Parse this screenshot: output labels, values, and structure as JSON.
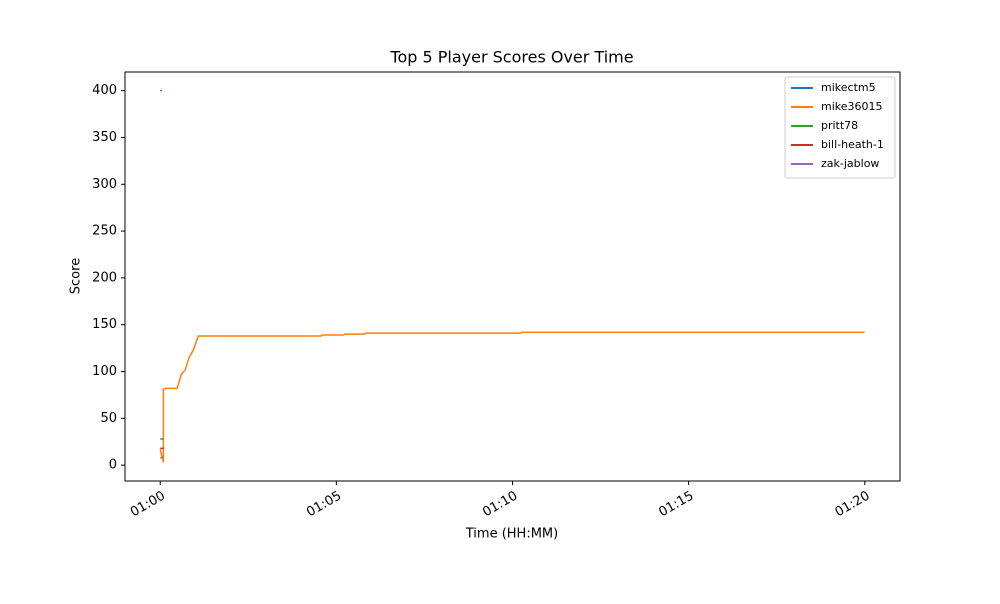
{
  "chart_data": {
    "type": "line",
    "title": "Top 5 Player Scores Over Time",
    "x_label": "Time (HH:MM)",
    "y_label": "Score",
    "xlim": [
      -1,
      21
    ],
    "ylim": [
      -16.9,
      419.9
    ],
    "xticks": [
      {
        "value": 0,
        "label": "01:00"
      },
      {
        "value": 5,
        "label": "01:05"
      },
      {
        "value": 10,
        "label": "01:10"
      },
      {
        "value": 15,
        "label": "01:15"
      },
      {
        "value": 20,
        "label": "01:20"
      }
    ],
    "yticks": [
      0,
      50,
      100,
      150,
      200,
      250,
      300,
      350,
      400
    ],
    "grid": false,
    "legend": "upper-right",
    "series": [
      {
        "name": "mikectm5",
        "color": "#1f77b4",
        "x": [
          0,
          0.05
        ],
        "values": [
          400,
          400
        ]
      },
      {
        "name": "mike36015",
        "color": "#ff7f0e",
        "x": [
          0,
          0.09,
          0.09,
          0.15,
          0.48,
          0.6,
          0.71,
          0.82,
          0.94,
          1.08,
          4.57,
          4.6,
          5.2,
          5.23,
          5.8,
          5.83,
          10.23,
          10.26,
          20
        ],
        "values": [
          17,
          3,
          81,
          82,
          82,
          97,
          102,
          115,
          123,
          138,
          138,
          139,
          139,
          140,
          140,
          141,
          141,
          142,
          142
        ]
      },
      {
        "name": "pritt78",
        "color": "#2ca02c",
        "x": [
          0,
          0.1
        ],
        "values": [
          28,
          28
        ]
      },
      {
        "name": "bill-heath-1",
        "color": "#d62728",
        "x": [
          0,
          0.1
        ],
        "values": [
          18,
          18
        ]
      },
      {
        "name": "zak-jablow",
        "color": "#9467bd",
        "x": [
          0,
          0.08
        ],
        "values": [
          8,
          8
        ]
      }
    ]
  }
}
